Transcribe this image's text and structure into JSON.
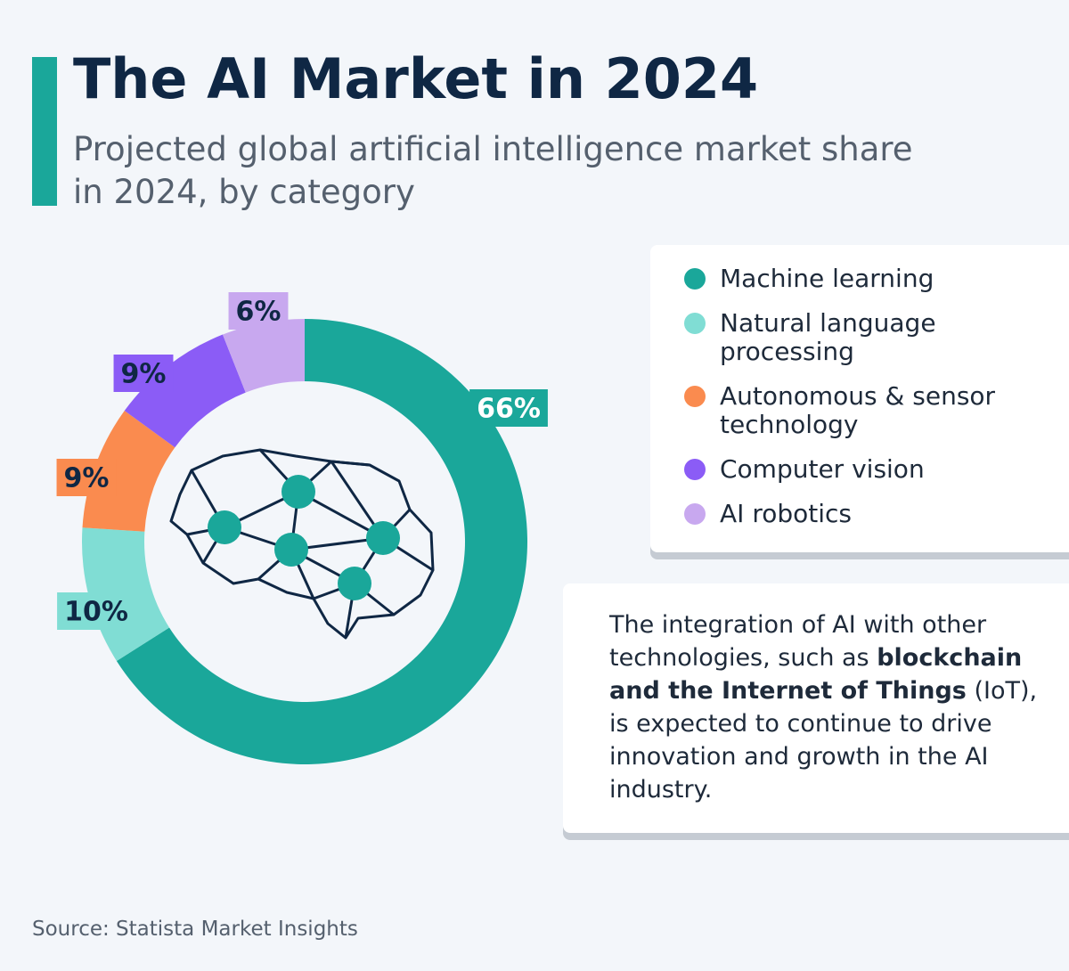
{
  "chart_data": {
    "type": "donut",
    "title": "The AI Market in 2024",
    "subtitle": "Projected global artificial intelligence market share in 2024, by category",
    "categories": [
      "Machine learning",
      "Natural language processing",
      "Autonomous & sensor technology",
      "Computer vision",
      "AI robotics"
    ],
    "values": [
      66,
      10,
      9,
      9,
      6
    ],
    "value_labels": [
      "66%",
      "10%",
      "9%",
      "9%",
      "6%"
    ],
    "colors": [
      "#1aa79a",
      "#80ddd4",
      "#fa8b4f",
      "#8b5cf6",
      "#c8a8ef"
    ],
    "note": [
      {
        "text": "The integration of AI with other technologies, such as ",
        "bold": false
      },
      {
        "text": "blockchain and the Internet of Things",
        "bold": true
      },
      {
        "text": " (IoT), is expected to continue to drive innovation and growth in the AI industry.",
        "bold": false
      }
    ],
    "source": "Source: Statista Market Insights"
  }
}
